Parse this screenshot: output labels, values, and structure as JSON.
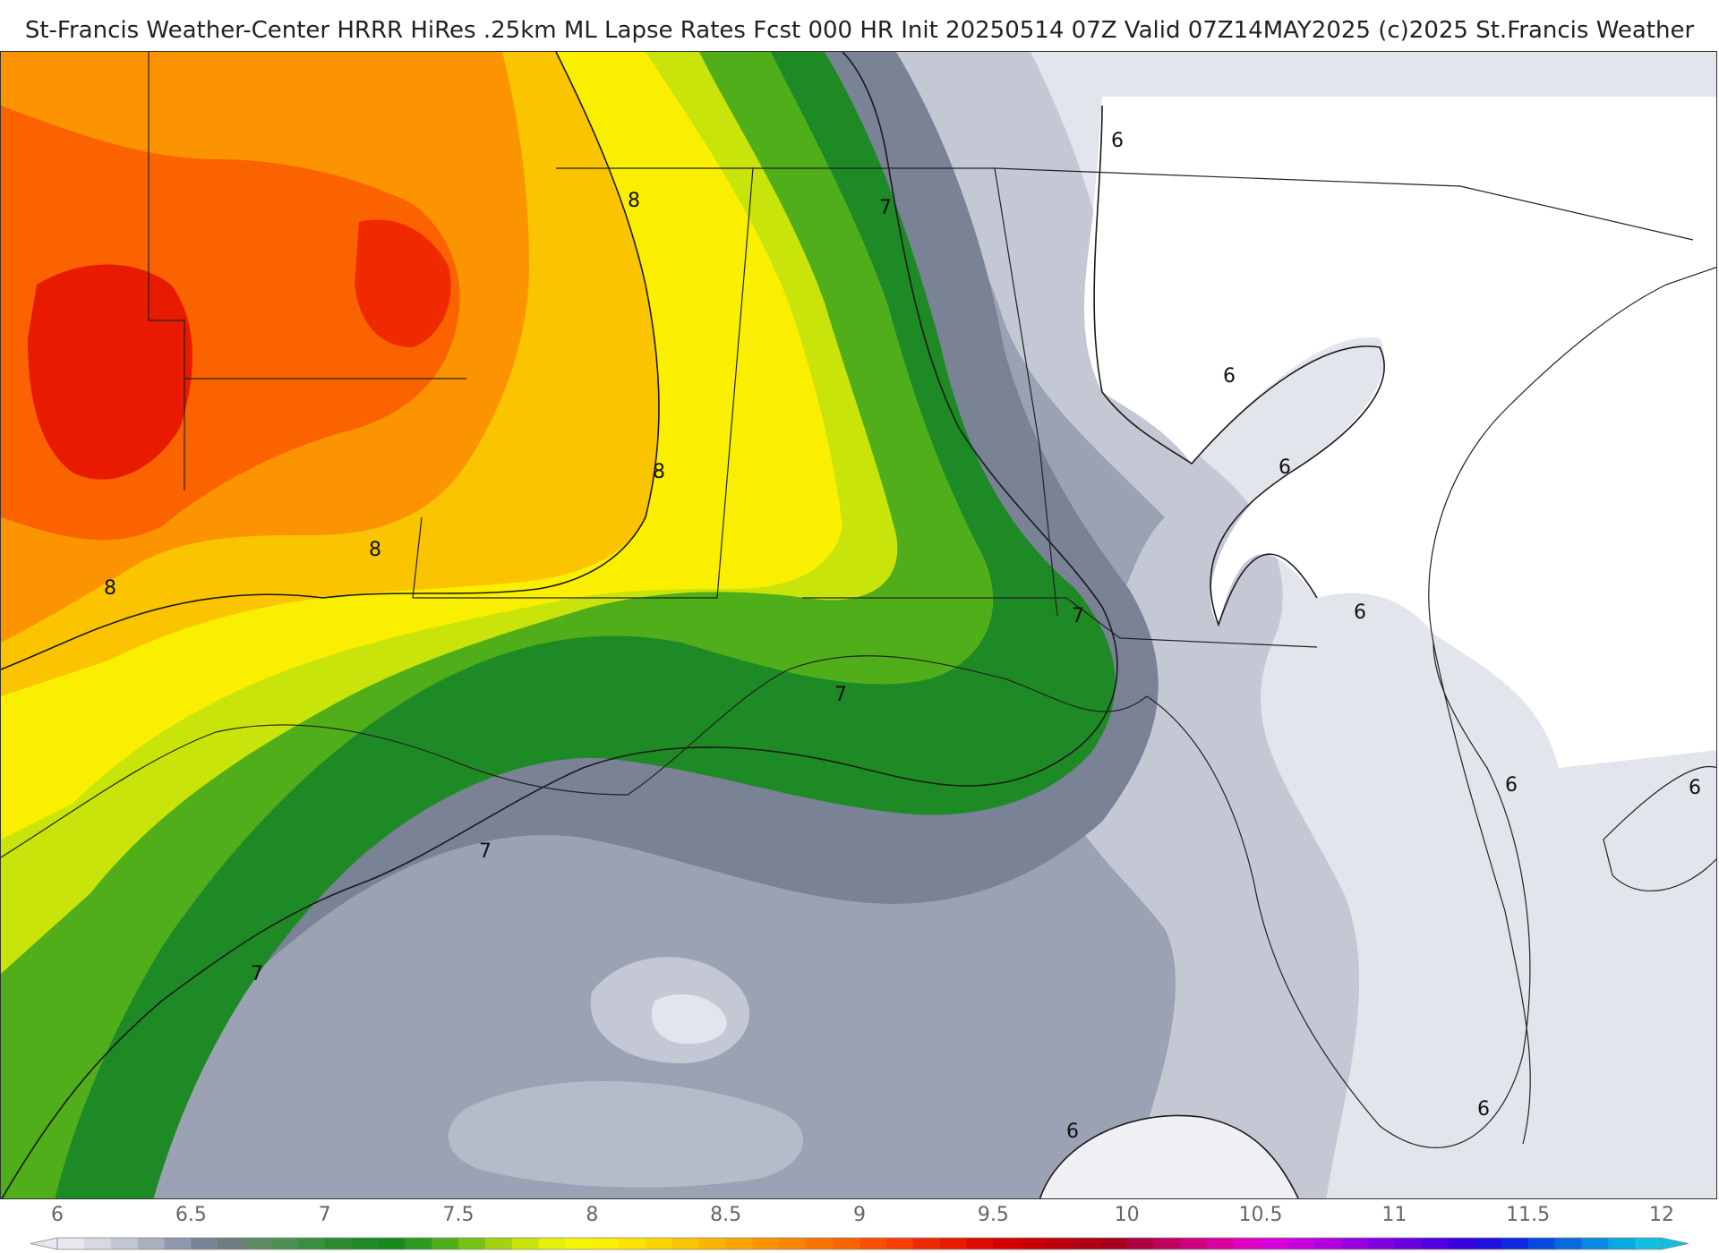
{
  "title": "St-Francis Weather-Center HRRR HiRes .25km ML Lapse Rates  Fcst 000 HR Init 20250514 07Z  Valid 07Z14MAY2025   (c)2025 St.Francis Weather",
  "colors": {
    "map_background": "#ffffff",
    "contour_line": "#1a1a1a",
    "state_border": "#222222",
    "county_border": "#9a9a9a"
  },
  "contour_labels": [
    "8",
    "8",
    "8",
    "8",
    "7",
    "7",
    "7",
    "7",
    "7",
    "6",
    "6",
    "6",
    "6",
    "6",
    "6",
    "6",
    "6"
  ],
  "legend": {
    "tick_labels": [
      "6",
      "6.5",
      "7",
      "7.5",
      "8",
      "8.5",
      "9",
      "9.5",
      "10",
      "10.5",
      "11",
      "11.5",
      "12"
    ],
    "min": 6,
    "max": 12,
    "step": 0.1,
    "colors": [
      "#e6e8ee",
      "#d6d9e2",
      "#c4c8d4",
      "#aab0c0",
      "#9098ab",
      "#7a8296",
      "#6e7e80",
      "#5f8a66",
      "#4e8f52",
      "#3a8f3e",
      "#2a8a2e",
      "#1e8a25",
      "#168a1d",
      "#2b9a1f",
      "#4fae1a",
      "#77c214",
      "#a2d40e",
      "#c8e40a",
      "#e6f006",
      "#f7f702",
      "#fbef00",
      "#fbe200",
      "#fbd400",
      "#fbc400",
      "#fbb400",
      "#fba400",
      "#fb9400",
      "#fb8400",
      "#fb7400",
      "#fb6200",
      "#fb5000",
      "#f83e00",
      "#f02a00",
      "#e81a00",
      "#de0c00",
      "#d40000",
      "#c80005",
      "#bc000c",
      "#b00014",
      "#a8001c",
      "#b00040",
      "#c00060",
      "#d00080",
      "#dc00a0",
      "#e000c0",
      "#d800d8",
      "#c800e0",
      "#b000e0",
      "#9800e0",
      "#8000e0",
      "#6800e0",
      "#5000e0",
      "#3800e0",
      "#2010e0",
      "#1028e0",
      "#0848e0",
      "#0868e0",
      "#0888e0",
      "#08a8e0",
      "#10c0e0"
    ]
  }
}
